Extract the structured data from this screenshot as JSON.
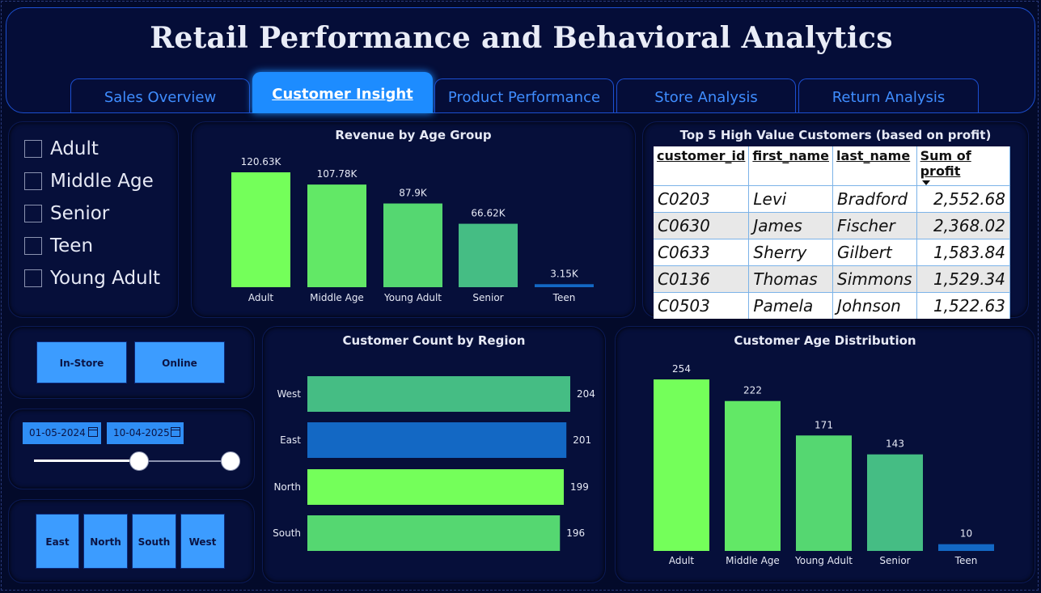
{
  "title": "Retail Performance and Behavioral Analytics",
  "tabs": [
    "Sales Overview",
    "Customer Insight",
    "Product Performance",
    "Store Analysis",
    "Return Analysis"
  ],
  "active_tab": "Customer Insight",
  "age_filter": [
    "Adult",
    "Middle Age",
    "Senior",
    "Teen",
    "Young Adult"
  ],
  "channel_buttons": [
    "In-Store",
    "Online"
  ],
  "date_range": {
    "start": "01-05-2024",
    "end": "10-04-2025"
  },
  "region_buttons": [
    "East",
    "North",
    "South",
    "West"
  ],
  "top_customers": {
    "title": "Top 5 High Value Customers (based on profit)",
    "columns": [
      "customer_id",
      "first_name",
      "last_name",
      "Sum of profit"
    ],
    "rows": [
      [
        "C0203",
        "Levi",
        "Bradford",
        "2,552.68"
      ],
      [
        "C0630",
        "James",
        "Fischer",
        "2,368.02"
      ],
      [
        "C0633",
        "Sherry",
        "Gilbert",
        "1,583.84"
      ],
      [
        "C0136",
        "Thomas",
        "Simmons",
        "1,529.34"
      ],
      [
        "C0503",
        "Pamela",
        "Johnson",
        "1,522.63"
      ]
    ]
  },
  "colors": {
    "accent": "#1d8cff",
    "green1": "#74ff5a",
    "green2": "#62e866",
    "green3": "#55d771",
    "teal": "#45bd84",
    "blue": "#1368c4"
  },
  "chart_data": [
    {
      "type": "bar",
      "title": "Revenue by Age Group",
      "categories": [
        "Adult",
        "Middle Age",
        "Young Adult",
        "Senior",
        "Teen"
      ],
      "values": [
        120630,
        107780,
        87900,
        66620,
        3150
      ],
      "labels": [
        "120.63K",
        "107.78K",
        "87.9K",
        "66.62K",
        "3.15K"
      ]
    },
    {
      "type": "bar",
      "orientation": "horizontal",
      "title": "Customer Count by Region",
      "categories": [
        "West",
        "East",
        "North",
        "South"
      ],
      "values": [
        204,
        201,
        199,
        196
      ]
    },
    {
      "type": "bar",
      "title": "Customer Age Distribution",
      "categories": [
        "Adult",
        "Middle Age",
        "Young Adult",
        "Senior",
        "Teen"
      ],
      "values": [
        254,
        222,
        171,
        143,
        10
      ]
    }
  ]
}
